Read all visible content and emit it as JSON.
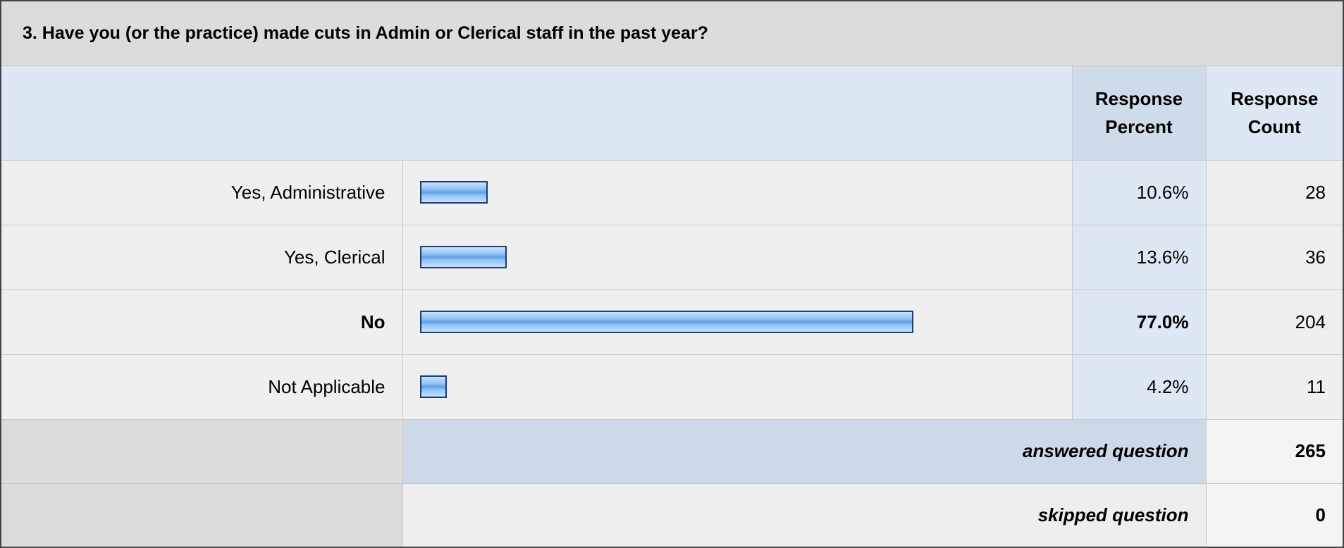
{
  "title": "3. Have you (or the practice) made cuts in Admin or Clerical staff in the past year?",
  "header": {
    "percent": "Response Percent",
    "count": "Response Count"
  },
  "rows": [
    {
      "label": "Yes, Administrative",
      "percent": {
        "value": 10.6,
        "label": "10.6%"
      },
      "count": 28
    },
    {
      "label": "Yes, Clerical",
      "percent": {
        "value": 13.6,
        "label": "13.6%"
      },
      "count": 36
    },
    {
      "label": "No",
      "percent": {
        "value": 77.0,
        "label": "77.0%"
      },
      "count": 204
    },
    {
      "label": "Not Applicable",
      "percent": {
        "value": 4.2,
        "label": "4.2%"
      },
      "count": 11
    }
  ],
  "answered": {
    "label": "answered question",
    "count": 265
  },
  "skipped": {
    "label": "skipped question",
    "count": 0
  }
}
